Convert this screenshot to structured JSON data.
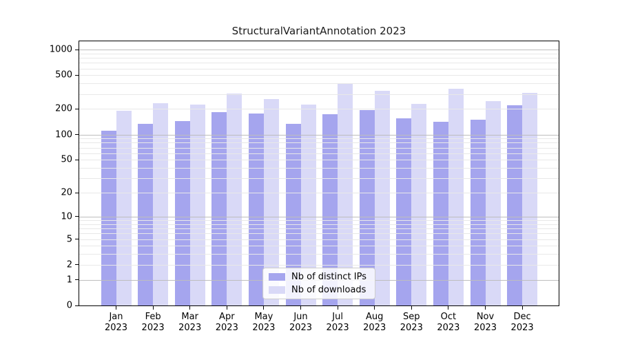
{
  "title": "StructuralVariantAnnotation 2023",
  "chart_data": {
    "type": "bar",
    "title": "StructuralVariantAnnotation 2023",
    "x_categories": [
      "Jan",
      "Feb",
      "Mar",
      "Apr",
      "May",
      "Jun",
      "Jul",
      "Aug",
      "Sep",
      "Oct",
      "Nov",
      "Dec"
    ],
    "x_year": "2023",
    "series": [
      {
        "name": "Nb of distinct IPs",
        "color": "#a5a5ee",
        "values": [
          111,
          134,
          143,
          183,
          176,
          135,
          173,
          193,
          155,
          141,
          149,
          221
        ]
      },
      {
        "name": "Nb of downloads",
        "color": "#d9d9f7",
        "values": [
          192,
          236,
          225,
          304,
          261,
          225,
          395,
          326,
          228,
          345,
          250,
          312
        ]
      }
    ],
    "yscale": "log1p",
    "ylim": [
      0,
      1250
    ],
    "y_ticks": [
      0,
      1,
      2,
      5,
      10,
      20,
      50,
      100,
      200,
      500,
      1000
    ],
    "grid_major": [
      1,
      10,
      100,
      1000
    ],
    "grid_minor": [
      2,
      3,
      4,
      5,
      6,
      7,
      8,
      9,
      20,
      30,
      40,
      50,
      60,
      70,
      80,
      90,
      200,
      300,
      400,
      500,
      600,
      700,
      800,
      900
    ],
    "legend": {
      "position": "lower center",
      "items": [
        "Nb of distinct IPs",
        "Nb of downloads"
      ]
    },
    "grid_on": true,
    "xlabel": "",
    "ylabel": ""
  }
}
